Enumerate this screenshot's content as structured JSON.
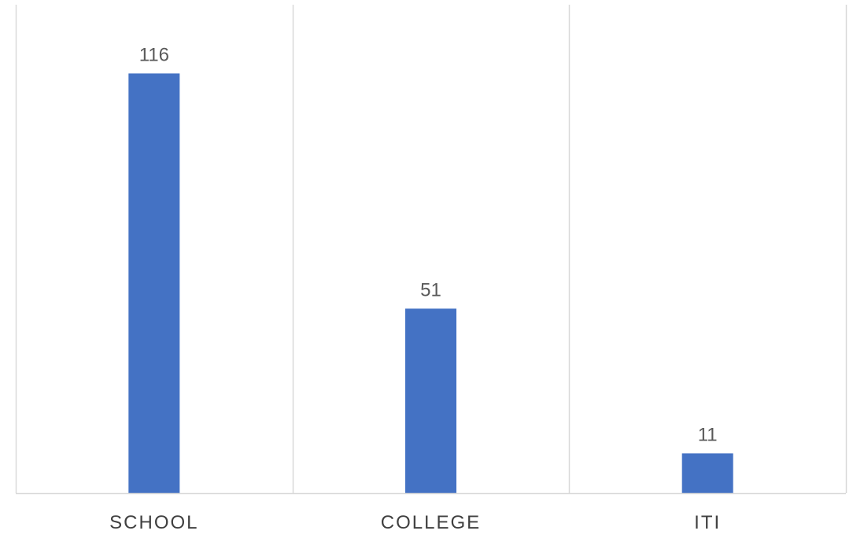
{
  "chart_data": {
    "type": "bar",
    "title": "",
    "xlabel": "",
    "ylabel": "",
    "categories": [
      "SCHOOL",
      "COLLEGE",
      "ITI"
    ],
    "values": [
      116,
      51,
      11
    ],
    "value_labels": [
      "116",
      "51",
      "11"
    ],
    "ylim": [
      0,
      135
    ],
    "y_axis_visible": false,
    "grid": "vertical category separators",
    "legend": "none",
    "bar_color": "#4472C4",
    "grid_color": "#D9D9D9",
    "label_color": "#404040",
    "value_label_color": "#595959"
  }
}
